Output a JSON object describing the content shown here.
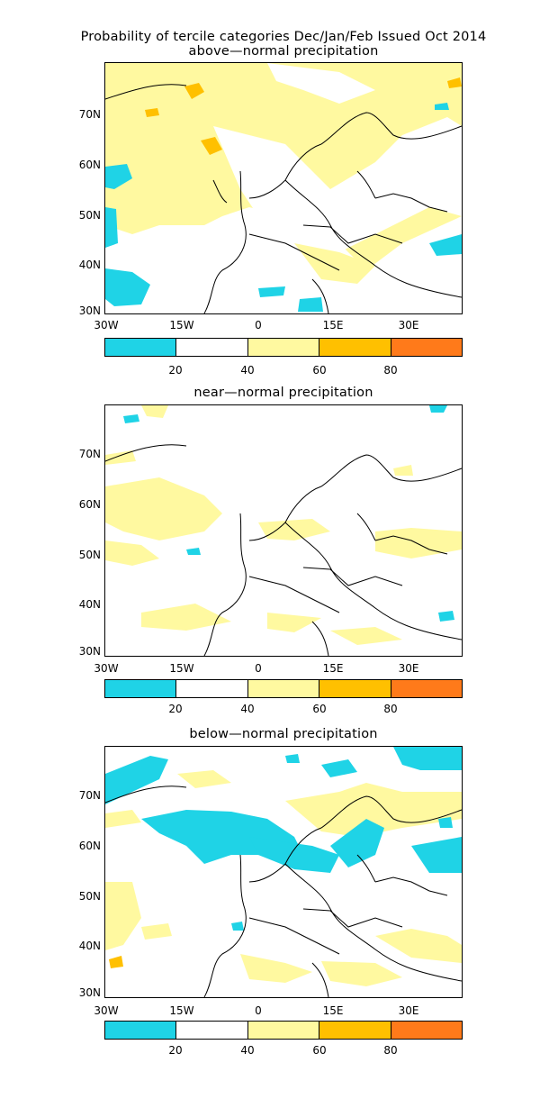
{
  "title_line1": "Probability of tercile categories Dec/Jan/Feb Issued Oct 2014",
  "panels": [
    {
      "name": "above",
      "title": "above—normal precipitation"
    },
    {
      "name": "near",
      "title": "near—normal precipitation"
    },
    {
      "name": "below",
      "title": "below—normal precipitation"
    }
  ],
  "lat_labels": [
    "70N",
    "60N",
    "50N",
    "40N",
    "30N"
  ],
  "lon_labels": [
    "30W",
    "15W",
    "0",
    "15E",
    "30E"
  ],
  "colorbar": {
    "colors": [
      "#1fd3e6",
      "#ffffff",
      "#fff9a0",
      "#ffc000",
      "#ff7a1a"
    ],
    "tick_labels": [
      "20",
      "40",
      "60",
      "80"
    ]
  },
  "colors": {
    "cyan": "#1fd3e6",
    "yellow": "#fff9a0",
    "orange": "#ffc000",
    "deep_orange": "#ff7a1a"
  }
}
